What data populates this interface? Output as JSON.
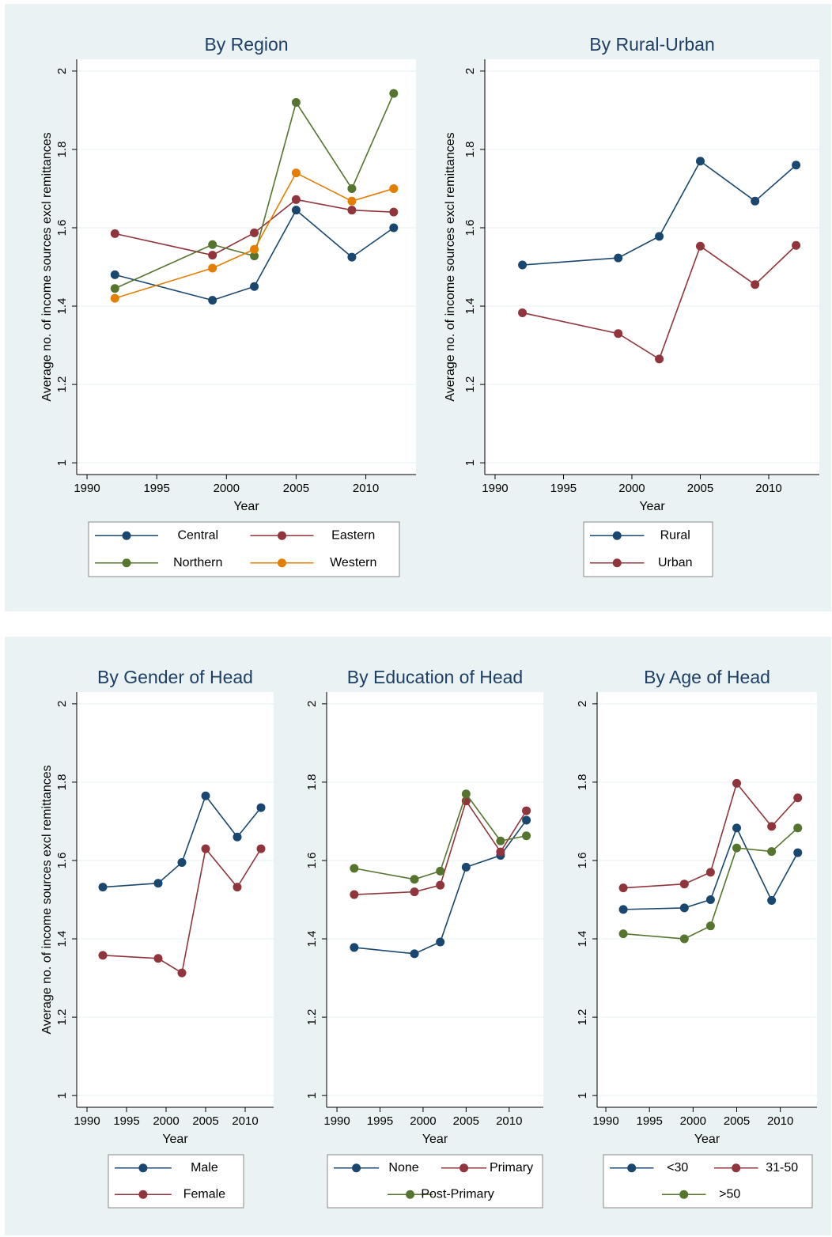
{
  "chart_data": [
    {
      "type": "line",
      "title": "By Region",
      "xlabel": "Year",
      "ylabel": "Average no. of income sources excl remittances",
      "x": [
        1992,
        1999,
        2002,
        2005,
        2009,
        2012
      ],
      "xlim": [
        1989.26,
        2013.6
      ],
      "xticks": [
        1990,
        1995,
        2000,
        2005,
        2010
      ],
      "ylim": [
        0.97,
        2.03
      ],
      "yticks": [
        1,
        1.2,
        1.4,
        1.6,
        1.8,
        2
      ],
      "grid": true,
      "series": [
        {
          "name": "Central",
          "color": "#1a476f",
          "values": [
            1.48,
            1.415,
            1.45,
            1.645,
            1.525,
            1.6
          ]
        },
        {
          "name": "Eastern",
          "color": "#90353b",
          "values": [
            1.585,
            1.53,
            1.587,
            1.672,
            1.645,
            1.64
          ]
        },
        {
          "name": "Northern",
          "color": "#55752f",
          "values": [
            1.445,
            1.557,
            1.528,
            1.92,
            1.7,
            1.943
          ]
        },
        {
          "name": "Western",
          "color": "#e37e00",
          "values": [
            1.42,
            1.497,
            1.545,
            1.74,
            1.668,
            1.7
          ]
        }
      ]
    },
    {
      "type": "line",
      "title": "By Rural-Urban",
      "xlabel": "Year",
      "ylabel": "Average no. of income sources excl remittances",
      "x": [
        1992,
        1999,
        2002,
        2005,
        2009,
        2012
      ],
      "xlim": [
        1989.25,
        2013.7
      ],
      "xticks": [
        1990,
        1995,
        2000,
        2005,
        2010
      ],
      "ylim": [
        0.97,
        2.03
      ],
      "yticks": [
        1,
        1.2,
        1.4,
        1.6,
        1.8,
        2
      ],
      "grid": true,
      "series": [
        {
          "name": "Rural",
          "color": "#1a476f",
          "values": [
            1.505,
            1.523,
            1.578,
            1.77,
            1.668,
            1.76
          ]
        },
        {
          "name": "Urban",
          "color": "#90353b",
          "values": [
            1.383,
            1.33,
            1.265,
            1.553,
            1.455,
            1.555
          ]
        }
      ]
    },
    {
      "type": "line",
      "title": "By Gender of Head",
      "xlabel": "Year",
      "ylabel": "Average no. of income sources excl remittances",
      "x": [
        1992,
        1999,
        2002,
        2005,
        2009,
        2012
      ],
      "xlim": [
        1988.7,
        2013.6
      ],
      "xticks": [
        1990,
        1995,
        2000,
        2005,
        2010
      ],
      "ylim": [
        0.97,
        2.03
      ],
      "yticks": [
        1,
        1.2,
        1.4,
        1.6,
        1.8,
        2
      ],
      "grid": true,
      "series": [
        {
          "name": "Male",
          "color": "#1a476f",
          "values": [
            1.532,
            1.542,
            1.595,
            1.765,
            1.66,
            1.735
          ]
        },
        {
          "name": "Female",
          "color": "#90353b",
          "values": [
            1.358,
            1.35,
            1.313,
            1.63,
            1.532,
            1.63
          ]
        }
      ]
    },
    {
      "type": "line",
      "title": "By Education of Head",
      "xlabel": "Year",
      "x": [
        1992,
        1999,
        2002,
        2005,
        2009,
        2012
      ],
      "xlim": [
        1988.8,
        2013.97
      ],
      "xticks": [
        1990,
        1995,
        2000,
        2005,
        2010
      ],
      "ylim": [
        0.97,
        2.03
      ],
      "yticks": [
        1,
        1.2,
        1.4,
        1.6,
        1.8,
        2
      ],
      "grid": true,
      "series": [
        {
          "name": "None",
          "color": "#1a476f",
          "values": [
            1.378,
            1.362,
            1.392,
            1.583,
            1.613,
            1.703
          ]
        },
        {
          "name": "Primary",
          "color": "#90353b",
          "values": [
            1.513,
            1.52,
            1.537,
            1.752,
            1.622,
            1.727
          ]
        },
        {
          "name": "Post-Primary",
          "color": "#55752f",
          "values": [
            1.58,
            1.552,
            1.573,
            1.77,
            1.65,
            1.663
          ]
        }
      ]
    },
    {
      "type": "line",
      "title": "By Age of Head",
      "xlabel": "Year",
      "x": [
        1992,
        1999,
        2002,
        2005,
        2009,
        2012
      ],
      "xlim": [
        1989.0,
        2014.2
      ],
      "xticks": [
        1990,
        1995,
        2000,
        2005,
        2010
      ],
      "ylim": [
        0.97,
        2.03
      ],
      "yticks": [
        1,
        1.2,
        1.4,
        1.6,
        1.8,
        2
      ],
      "grid": true,
      "series": [
        {
          "name": "<30",
          "color": "#1a476f",
          "values": [
            1.475,
            1.479,
            1.5,
            1.683,
            1.498,
            1.62
          ]
        },
        {
          "name": "31-50",
          "color": "#90353b",
          "values": [
            1.53,
            1.54,
            1.57,
            1.797,
            1.687,
            1.76
          ]
        },
        {
          "name": ">50",
          "color": "#55752f",
          "values": [
            1.413,
            1.4,
            1.433,
            1.632,
            1.623,
            1.683
          ]
        }
      ]
    }
  ]
}
